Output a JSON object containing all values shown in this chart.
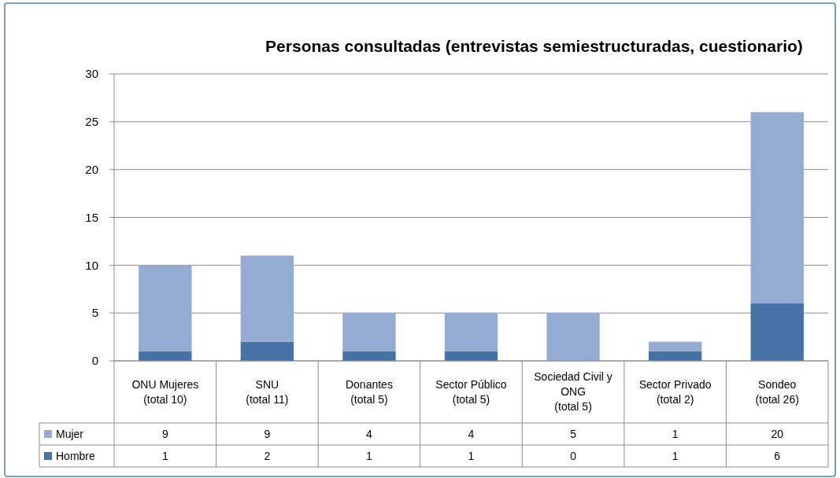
{
  "chart_data": {
    "type": "bar",
    "title": "Personas consultadas (entrevistas semiestructuradas, cuestionario)",
    "categories": [
      "ONU Mujeres\n(total 10)",
      "SNU\n(total 11)",
      "Donantes\n(total 5)",
      "Sector Público\n(total 5)",
      "Sociedad Civil y\nONG\n(total 5)",
      "Sector Privado\n(total 2)",
      "Sondeo\n(total 26)"
    ],
    "series": [
      {
        "name": "Hombre",
        "color": "#4772a6",
        "values": [
          1,
          2,
          1,
          1,
          0,
          1,
          6
        ]
      },
      {
        "name": "Mujer",
        "color": "#95abd3",
        "values": [
          9,
          9,
          4,
          4,
          5,
          1,
          20
        ]
      }
    ],
    "stacked": true,
    "ylim": [
      0,
      30
    ],
    "yticks": [
      0,
      5,
      10,
      15,
      20,
      25,
      30
    ],
    "grid": "y",
    "legend": "bottom",
    "data_labels": true
  }
}
